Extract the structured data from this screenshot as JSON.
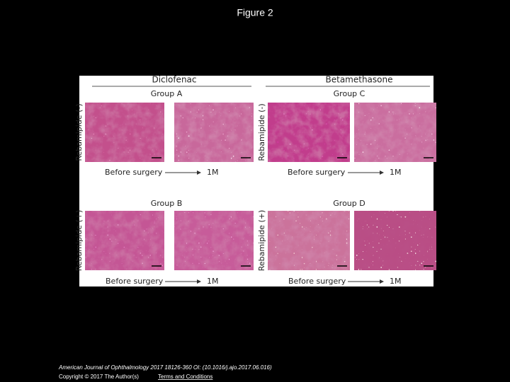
{
  "title": "Figure 2",
  "figure": {
    "columns": [
      {
        "drug": "Diclofenac",
        "groups": [
          {
            "group": "Group A",
            "row_label": "Rebamipide (-)",
            "before": "Before surgery",
            "after": "1M"
          },
          {
            "group": "Group B",
            "row_label": "Rebamipide (+)",
            "before": "Before surgery",
            "after": "1M"
          }
        ]
      },
      {
        "drug": "Betamethasone",
        "groups": [
          {
            "group": "Group C",
            "row_label": "Rebamipide (-)",
            "before": "Before surgery",
            "after": "1M"
          },
          {
            "group": "Group D",
            "row_label": "Rebamipide (+)",
            "before": "Before surgery",
            "after": "1M"
          }
        ]
      }
    ]
  },
  "footer": {
    "citation": "American Journal of Ophthalmology 2017 18126-360 OI: (10.1016/j.ajo.2017.06.016)",
    "copyright": "Copyright © 2017 The Author(s)",
    "link": "Terms and Conditions"
  }
}
